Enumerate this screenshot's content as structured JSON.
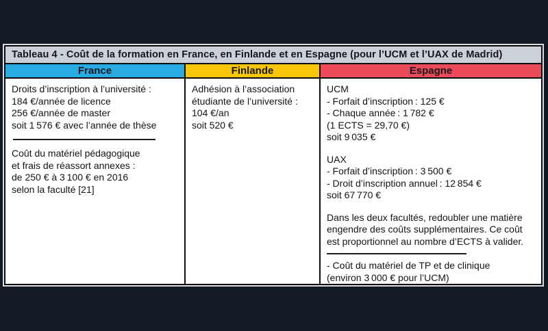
{
  "page": {
    "background": "#141a24"
  },
  "table": {
    "title": "Tableau 4 - Coût de la formation en France, en Finlande et en Espagne (pour l’UCM et l’UAX de Madrid)",
    "title_bg": "#cbd1d9",
    "headers": [
      {
        "label": "France",
        "color": "#29abe2"
      },
      {
        "label": "Finlande",
        "color": "#f7c608"
      },
      {
        "label": "Espagne",
        "color": "#eb4a58"
      }
    ],
    "cells": {
      "france": {
        "para1": [
          "Droits d’inscription à l’université :",
          "184 €/année de licence",
          "256 €/année de master",
          "soit 1 576 € avec l’année de thèse"
        ],
        "para2": [
          "Coût du matériel pédagogique",
          "et frais de réassort annexes :",
          "de 250 € à 3 100 € en 2016",
          "selon la faculté [21]"
        ]
      },
      "finlande": {
        "para1": [
          "Adhésion à l’association",
          "étudiante de l’université :",
          "104 €/an",
          "soit 520 €"
        ]
      },
      "espagne": {
        "para1": [
          "UCM",
          "- Forfait d’inscription : 125 €",
          "- Chaque année : 1 782 €",
          "(1 ECTS = 29,70 €)",
          "soit 9 035 €"
        ],
        "para2": [
          "UAX",
          "- Forfait d’inscription : 3 500 €",
          "- Droit d’inscription annuel : 12 854 €",
          "soit 67 770 €"
        ],
        "para3": [
          "Dans les deux facultés, redoubler une matière",
          "engendre des coûts supplémentaires. Ce coût",
          "est proportionnel au nombre d’ECTS à valider."
        ],
        "para4": [
          "- Coût du matériel de TP et de clinique",
          "(environ 3 000 € pour l’UCM)"
        ]
      }
    }
  }
}
